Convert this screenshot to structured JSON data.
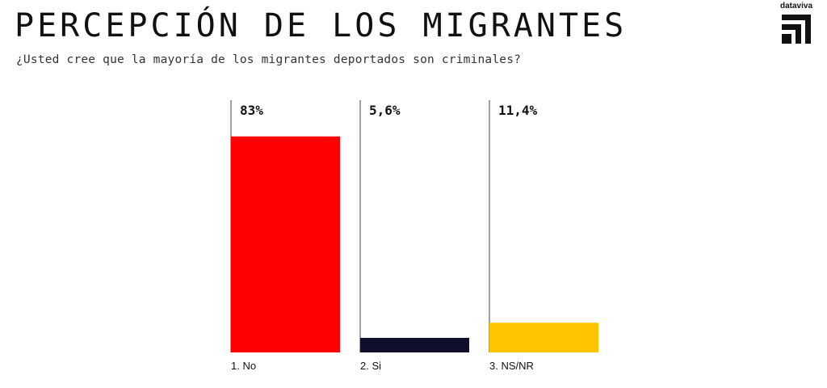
{
  "header": {
    "title": "PERCEPCIÓN DE LOS MIGRANTES",
    "subtitle": "¿Usted cree que la mayoría de los migrantes deportados son criminales?",
    "brand": "dataviva"
  },
  "chart_data": {
    "type": "bar",
    "categories": [
      "1. No",
      "2. Si",
      "3. NS/NR"
    ],
    "values": [
      83,
      5.6,
      11.4
    ],
    "value_labels": [
      "83%",
      "5,6%",
      "11,4%"
    ],
    "colors": [
      "#ff0000",
      "#10102e",
      "#ffc400"
    ],
    "ylim": [
      0,
      100
    ],
    "grid": false,
    "legend": "none"
  }
}
